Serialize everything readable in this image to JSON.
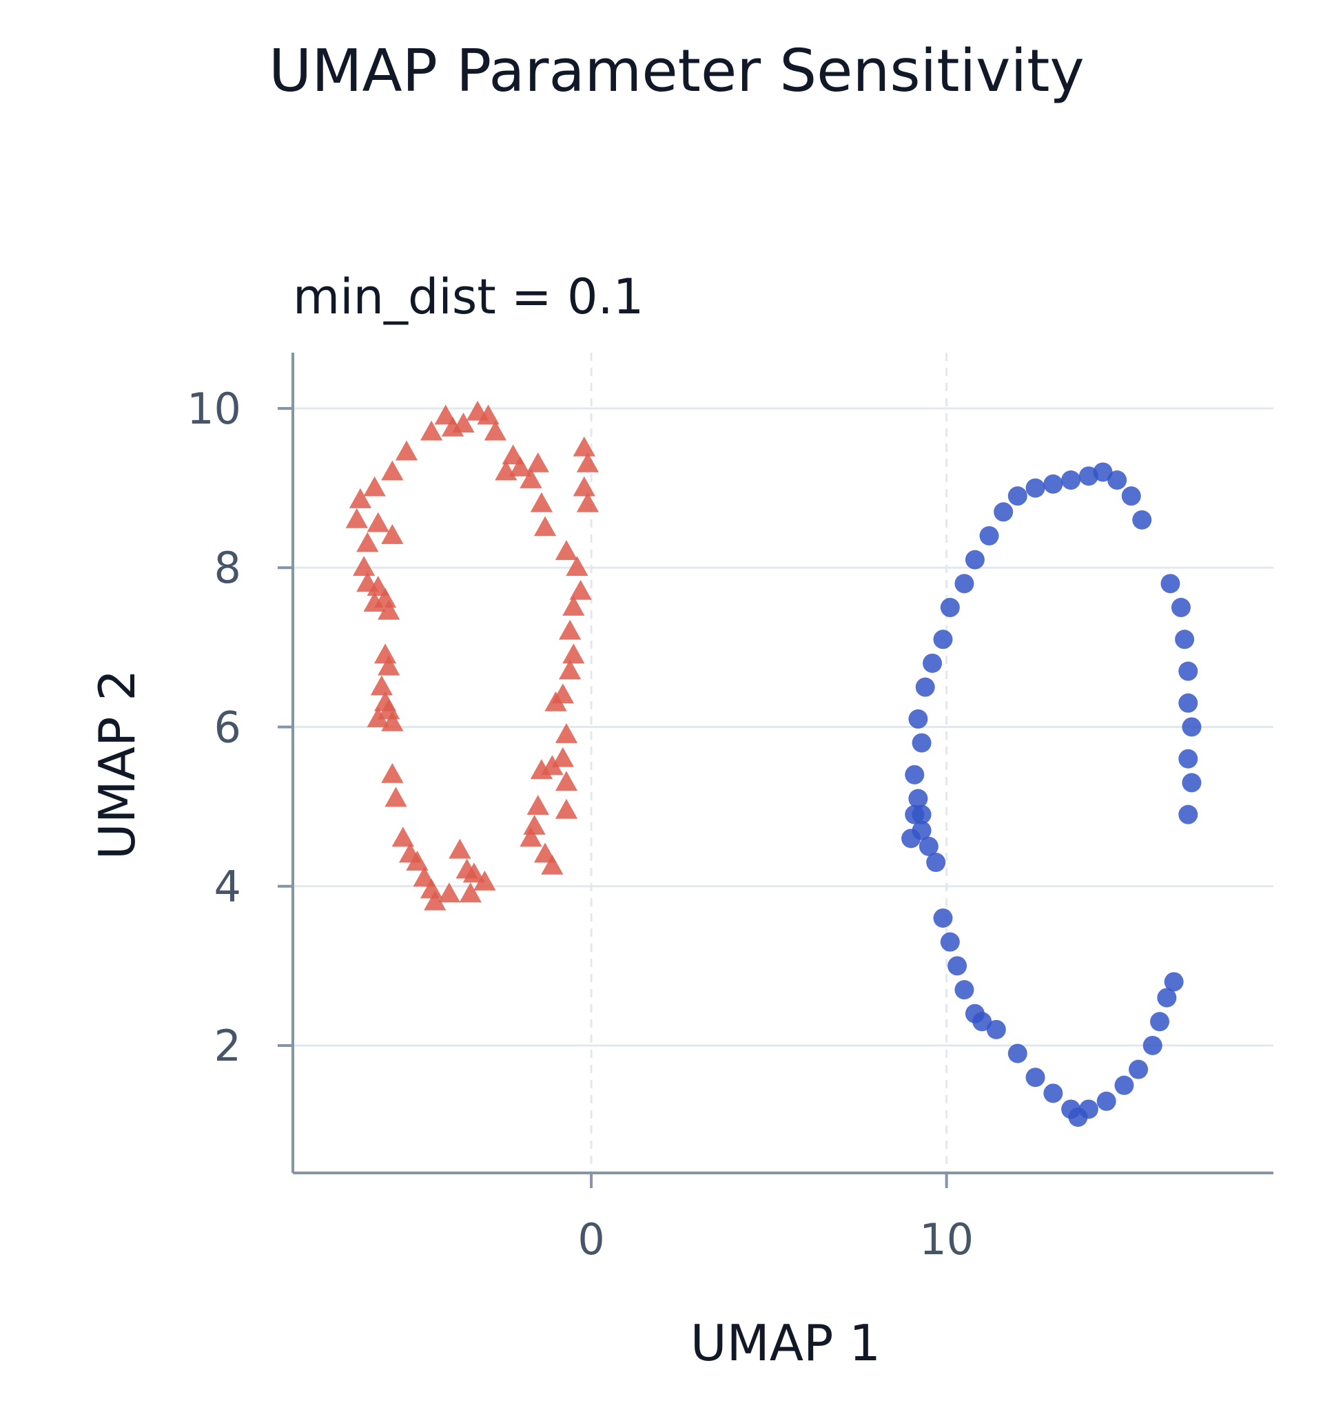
{
  "chart_data": {
    "type": "scatter",
    "title": "UMAP Parameter Sensitivity",
    "subtitle": "min_dist = 0.1",
    "xlabel": "UMAP 1",
    "ylabel": "UMAP 2",
    "xlim": [
      -8.4,
      19.2
    ],
    "ylim": [
      0.4,
      10.7
    ],
    "xticks": [
      0,
      10
    ],
    "yticks": [
      2,
      4,
      6,
      8,
      10
    ],
    "grid": true,
    "series": [
      {
        "marker": "triangle",
        "color": "#dd5a4b",
        "points": [
          [
            -4.1,
            9.9
          ],
          [
            -3.6,
            9.8
          ],
          [
            -3.2,
            9.95
          ],
          [
            -2.9,
            9.9
          ],
          [
            -2.7,
            9.7
          ],
          [
            -3.9,
            9.75
          ],
          [
            -4.5,
            9.7
          ],
          [
            -5.2,
            9.45
          ],
          [
            -5.6,
            9.2
          ],
          [
            -6.1,
            9.0
          ],
          [
            -6.5,
            8.85
          ],
          [
            -6.6,
            8.6
          ],
          [
            -6.0,
            8.55
          ],
          [
            -5.6,
            8.4
          ],
          [
            -6.3,
            8.3
          ],
          [
            -6.4,
            8.0
          ],
          [
            -6.3,
            7.8
          ],
          [
            -6.0,
            7.75
          ],
          [
            -5.8,
            7.6
          ],
          [
            -6.1,
            7.55
          ],
          [
            -5.7,
            7.45
          ],
          [
            -5.8,
            6.9
          ],
          [
            -5.7,
            6.75
          ],
          [
            -5.9,
            6.5
          ],
          [
            -5.8,
            6.3
          ],
          [
            -6.0,
            6.1
          ],
          [
            -5.6,
            6.05
          ],
          [
            -5.7,
            6.2
          ],
          [
            -5.6,
            5.4
          ],
          [
            -5.5,
            5.1
          ],
          [
            -5.3,
            4.6
          ],
          [
            -5.1,
            4.4
          ],
          [
            -4.9,
            4.3
          ],
          [
            -4.7,
            4.1
          ],
          [
            -4.5,
            3.95
          ],
          [
            -4.4,
            3.8
          ],
          [
            -4.0,
            3.9
          ],
          [
            -3.7,
            4.45
          ],
          [
            -3.5,
            4.2
          ],
          [
            -3.3,
            4.15
          ],
          [
            -3.0,
            4.05
          ],
          [
            -3.4,
            3.9
          ],
          [
            -1.5,
            9.3
          ],
          [
            -1.7,
            9.1
          ],
          [
            -1.4,
            8.8
          ],
          [
            -1.3,
            8.5
          ],
          [
            -0.7,
            8.2
          ],
          [
            -0.4,
            8.0
          ],
          [
            -0.3,
            7.7
          ],
          [
            -0.5,
            7.5
          ],
          [
            -0.6,
            7.2
          ],
          [
            -0.5,
            6.9
          ],
          [
            -0.6,
            6.7
          ],
          [
            -0.8,
            6.4
          ],
          [
            -1.0,
            6.3
          ],
          [
            -0.7,
            5.9
          ],
          [
            -0.8,
            5.6
          ],
          [
            -1.1,
            5.5
          ],
          [
            -1.4,
            5.45
          ],
          [
            -0.7,
            5.3
          ],
          [
            -1.5,
            5.0
          ],
          [
            -0.7,
            4.95
          ],
          [
            -1.6,
            4.75
          ],
          [
            -1.7,
            4.6
          ],
          [
            -1.3,
            4.4
          ],
          [
            -1.1,
            4.25
          ],
          [
            -0.2,
            9.5
          ],
          [
            -0.1,
            9.3
          ],
          [
            -0.2,
            9.0
          ],
          [
            -0.1,
            8.8
          ],
          [
            -2.2,
            9.4
          ],
          [
            -2.4,
            9.2
          ],
          [
            -2.0,
            9.25
          ]
        ]
      },
      {
        "marker": "circle",
        "color": "#3556c7",
        "points": [
          [
            9.0,
            4.6
          ],
          [
            9.1,
            4.9
          ],
          [
            9.3,
            4.7
          ],
          [
            9.5,
            4.5
          ],
          [
            9.7,
            4.3
          ],
          [
            9.2,
            5.1
          ],
          [
            9.1,
            5.4
          ],
          [
            9.3,
            5.8
          ],
          [
            9.2,
            6.1
          ],
          [
            9.4,
            6.5
          ],
          [
            9.6,
            6.8
          ],
          [
            9.9,
            7.1
          ],
          [
            10.1,
            7.5
          ],
          [
            10.5,
            7.8
          ],
          [
            10.8,
            8.1
          ],
          [
            11.2,
            8.4
          ],
          [
            11.6,
            8.7
          ],
          [
            12.0,
            8.9
          ],
          [
            12.5,
            9.0
          ],
          [
            13.0,
            9.05
          ],
          [
            13.5,
            9.1
          ],
          [
            14.0,
            9.15
          ],
          [
            14.4,
            9.2
          ],
          [
            14.8,
            9.1
          ],
          [
            15.2,
            8.9
          ],
          [
            15.5,
            8.6
          ],
          [
            16.3,
            7.8
          ],
          [
            16.6,
            7.5
          ],
          [
            16.7,
            7.1
          ],
          [
            16.8,
            6.7
          ],
          [
            16.8,
            6.3
          ],
          [
            16.9,
            6.0
          ],
          [
            16.8,
            5.6
          ],
          [
            16.9,
            5.3
          ],
          [
            16.8,
            4.9
          ],
          [
            9.9,
            3.6
          ],
          [
            10.1,
            3.3
          ],
          [
            10.3,
            3.0
          ],
          [
            10.5,
            2.7
          ],
          [
            10.8,
            2.4
          ],
          [
            11.4,
            2.2
          ],
          [
            12.0,
            1.9
          ],
          [
            12.5,
            1.6
          ],
          [
            13.0,
            1.4
          ],
          [
            13.5,
            1.2
          ],
          [
            14.0,
            1.2
          ],
          [
            14.5,
            1.3
          ],
          [
            15.0,
            1.5
          ],
          [
            15.4,
            1.7
          ],
          [
            15.8,
            2.0
          ],
          [
            16.0,
            2.3
          ],
          [
            16.2,
            2.6
          ],
          [
            16.4,
            2.8
          ],
          [
            11.0,
            2.3
          ],
          [
            9.3,
            4.9
          ],
          [
            13.7,
            1.1
          ]
        ]
      }
    ]
  }
}
